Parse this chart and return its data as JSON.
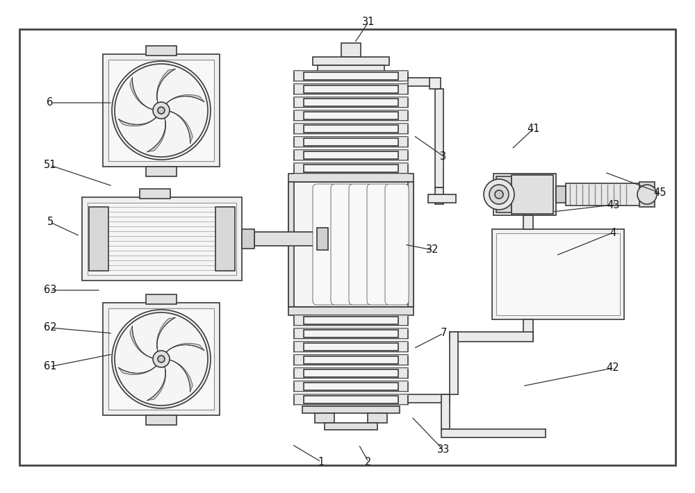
{
  "bg": "#ffffff",
  "lc": "#3a3a3a",
  "annotations": [
    [
      "31",
      530,
      32,
      510,
      62
    ],
    [
      "3",
      638,
      225,
      595,
      195
    ],
    [
      "32",
      622,
      360,
      582,
      352
    ],
    [
      "7",
      638,
      480,
      595,
      502
    ],
    [
      "33",
      638,
      648,
      592,
      600
    ],
    [
      "2",
      530,
      665,
      516,
      640
    ],
    [
      "1",
      462,
      665,
      420,
      640
    ],
    [
      "41",
      768,
      185,
      736,
      215
    ],
    [
      "45",
      950,
      278,
      870,
      248
    ],
    [
      "43",
      882,
      295,
      795,
      305
    ],
    [
      "4",
      882,
      335,
      800,
      368
    ],
    [
      "42",
      882,
      530,
      752,
      556
    ],
    [
      "6",
      72,
      148,
      162,
      148
    ],
    [
      "51",
      72,
      238,
      162,
      268
    ],
    [
      "5",
      72,
      320,
      115,
      340
    ],
    [
      "63",
      72,
      418,
      145,
      418
    ],
    [
      "62",
      72,
      472,
      162,
      480
    ],
    [
      "61",
      72,
      528,
      162,
      510
    ]
  ]
}
